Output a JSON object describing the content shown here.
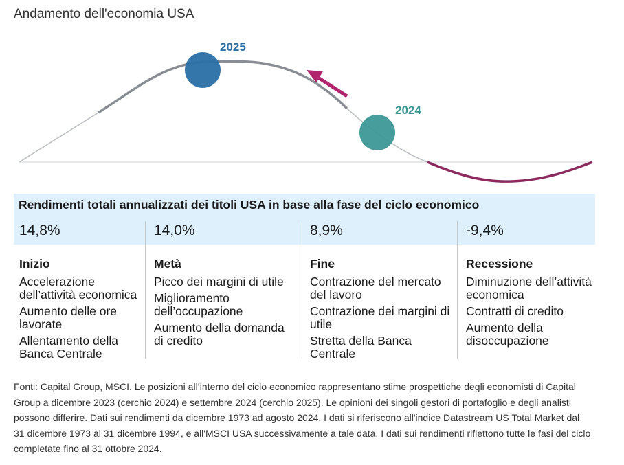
{
  "title": "Andamento dell'economia USA",
  "markers": {
    "y2025": {
      "label": "2025",
      "color": "#2a6fa5"
    },
    "y2024": {
      "label": "2024",
      "color": "#3c9896"
    }
  },
  "colors": {
    "curve_gray": "#888e94",
    "curve_light": "#b8bcc0",
    "curve_recession": "#8a2a5e",
    "arrow": "#b0246e",
    "band": "#ddf0fb"
  },
  "table": {
    "title": "Rendimenti totali annualizzati dei titoli USA in base alla fase del ciclo economico",
    "columns": [
      {
        "value": "14,8%",
        "phase": "Inizio",
        "items": [
          "Accelerazione dell’attività economica",
          "Aumento delle ore lavorate",
          "Allentamento della Banca Centrale"
        ]
      },
      {
        "value": "14,0%",
        "phase": "Metà",
        "items": [
          "Picco dei margini di utile",
          "Miglioramento dell’occupazione",
          "Aumento della domanda di credito"
        ]
      },
      {
        "value": "8,9%",
        "phase": "Fine",
        "items": [
          "Contrazione del mercato del lavoro",
          "Contrazione dei margini di utile",
          "Stretta della Banca Centrale"
        ]
      },
      {
        "value": "-9,4%",
        "phase": "Recessione",
        "items": [
          "Diminuzione dell’attività economica",
          "Contratti di credito",
          "Aumento della disoccupazione"
        ]
      }
    ]
  },
  "footnote": "Fonti: Capital Group, MSCI. Le posizioni all’interno del ciclo economico rappresentano stime prospettiche degli economisti di Capital Group a dicembre 2023 (cerchio 2024) e settembre 2024 (cerchio 2025). Le opinioni dei singoli gestori di portafoglio e degli analisti possono differire. Dati sui rendimenti da dicembre 1973 ad agosto 2024. I dati si riferiscono all'indice Datastream US Total Market dal 31 dicembre 1973 al 31 dicembre 1994, e all'MSCI USA successivamente a tale data. I dati sui rendimenti riflettono tutte le fasi del ciclo completate fino al 31 ottobre 2024."
}
